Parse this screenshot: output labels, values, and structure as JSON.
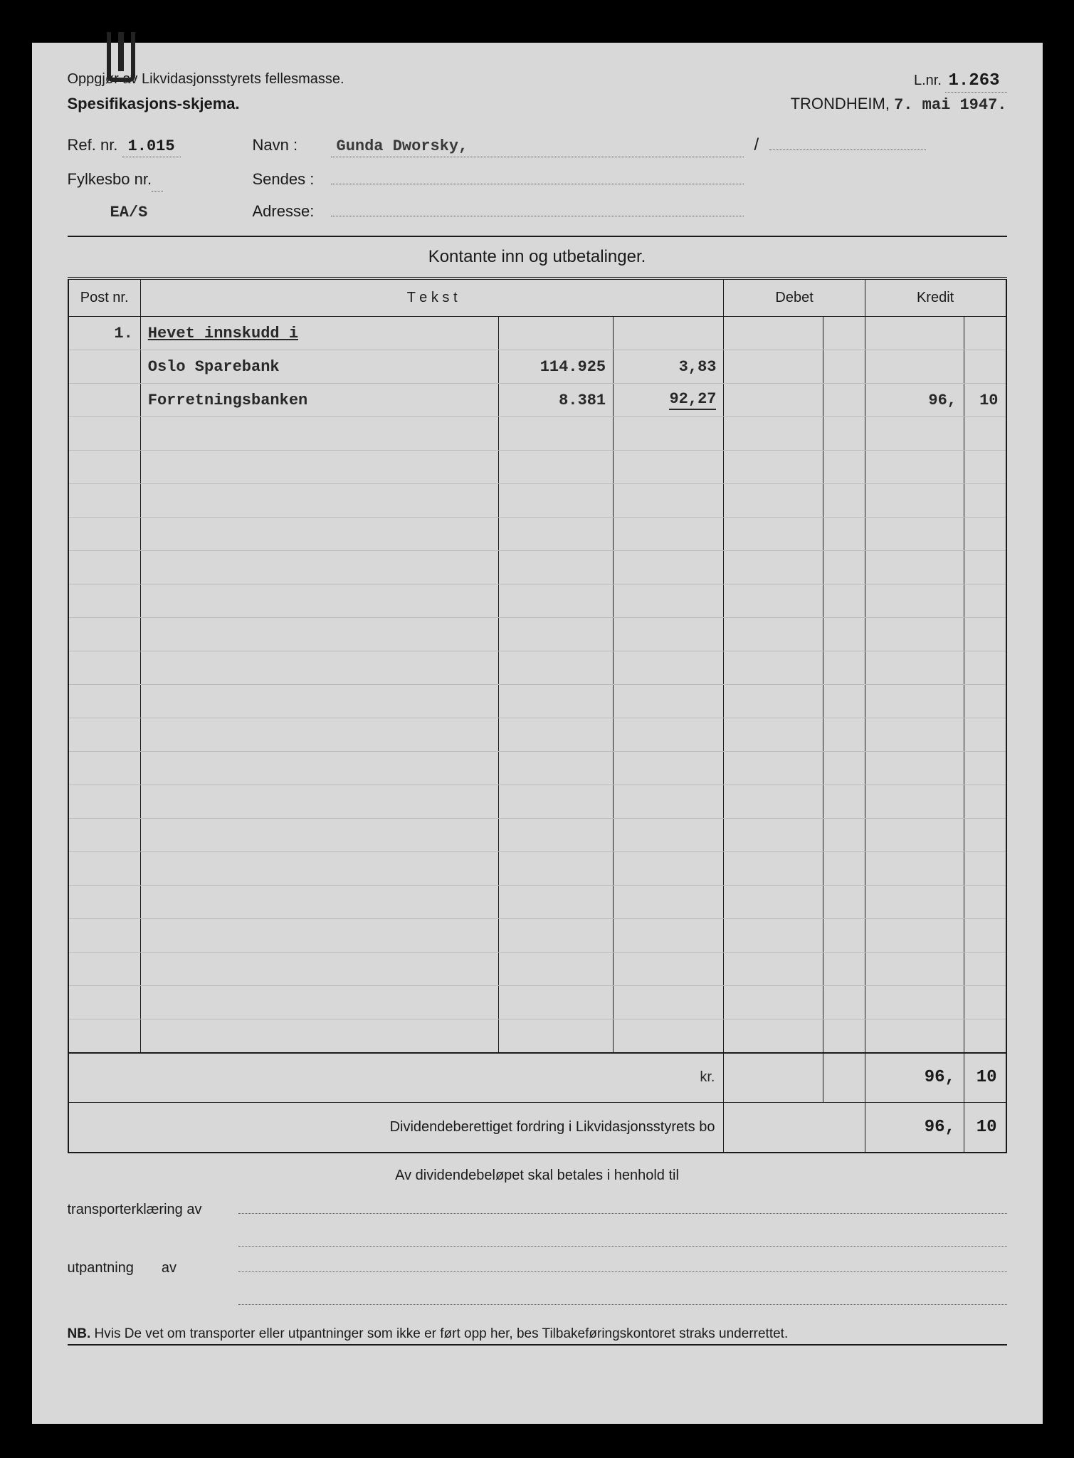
{
  "header": {
    "line1": "Oppgjør av Likvidasjonsstyrets fellesmasse.",
    "line2": "Spesifikasjons-skjema.",
    "lnr_label": "L.nr.",
    "lnr_value": "1.263",
    "location": "TRONDHEIM,",
    "date": "7. mai 1947."
  },
  "fields": {
    "ref_label": "Ref. nr.",
    "ref_value": "1.015",
    "navn_label": "Navn :",
    "navn_value": "Gunda Dworsky,",
    "fylkesbo_label": "Fylkesbo nr.",
    "fylkesbo_value": "",
    "sendes_label": "Sendes :",
    "sendes_value": "",
    "extra_ref": "EA/S",
    "adresse_label": "Adresse:",
    "adresse_value": ""
  },
  "table": {
    "section_title": "Kontante inn og utbetalinger.",
    "headers": {
      "post": "Post nr.",
      "tekst": "T e k s t",
      "debet": "Debet",
      "kredit": "Kredit"
    },
    "rows": [
      {
        "post": "1.",
        "tekst": "Hevet innskudd i",
        "num": "",
        "amt_int": "",
        "amt_dec": "",
        "deb_int": "",
        "deb_dec": "",
        "kre_int": "",
        "kre_dec": "",
        "underline": true
      },
      {
        "post": "",
        "tekst": "Oslo Sparebank",
        "num": "114.925",
        "amt_int": "3,",
        "amt_dec": "83",
        "deb_int": "",
        "deb_dec": "",
        "kre_int": "",
        "kre_dec": ""
      },
      {
        "post": "",
        "tekst": "Forretningsbanken",
        "num": "8.381",
        "amt_int": "92,",
        "amt_dec": "27",
        "deb_int": "",
        "deb_dec": "",
        "kre_int": "96,",
        "kre_dec": "10",
        "amt_underline": true
      }
    ],
    "empty_rows": 19,
    "total_label": "kr.",
    "total_kredit_int": "96,",
    "total_kredit_dec": "10",
    "dividend_label": "Dividendeberettiget fordring i Likvidasjonsstyrets bo",
    "dividend_int": "96,",
    "dividend_dec": "10"
  },
  "footer": {
    "title": "Av dividendebeløpet skal betales i henhold til",
    "transport_label": "transporterklæring av",
    "utpantning_label": "utpantning",
    "av": "av",
    "nb_prefix": "NB.",
    "nb_text": "Hvis De vet om transporter eller utpantninger som ikke er ført opp her, bes Tilbakeføringskontoret straks underrettet."
  },
  "colors": {
    "page_bg": "#d8d8d8",
    "outer_bg": "#000000",
    "ink": "#1a1a1a",
    "typed": "#282828"
  }
}
